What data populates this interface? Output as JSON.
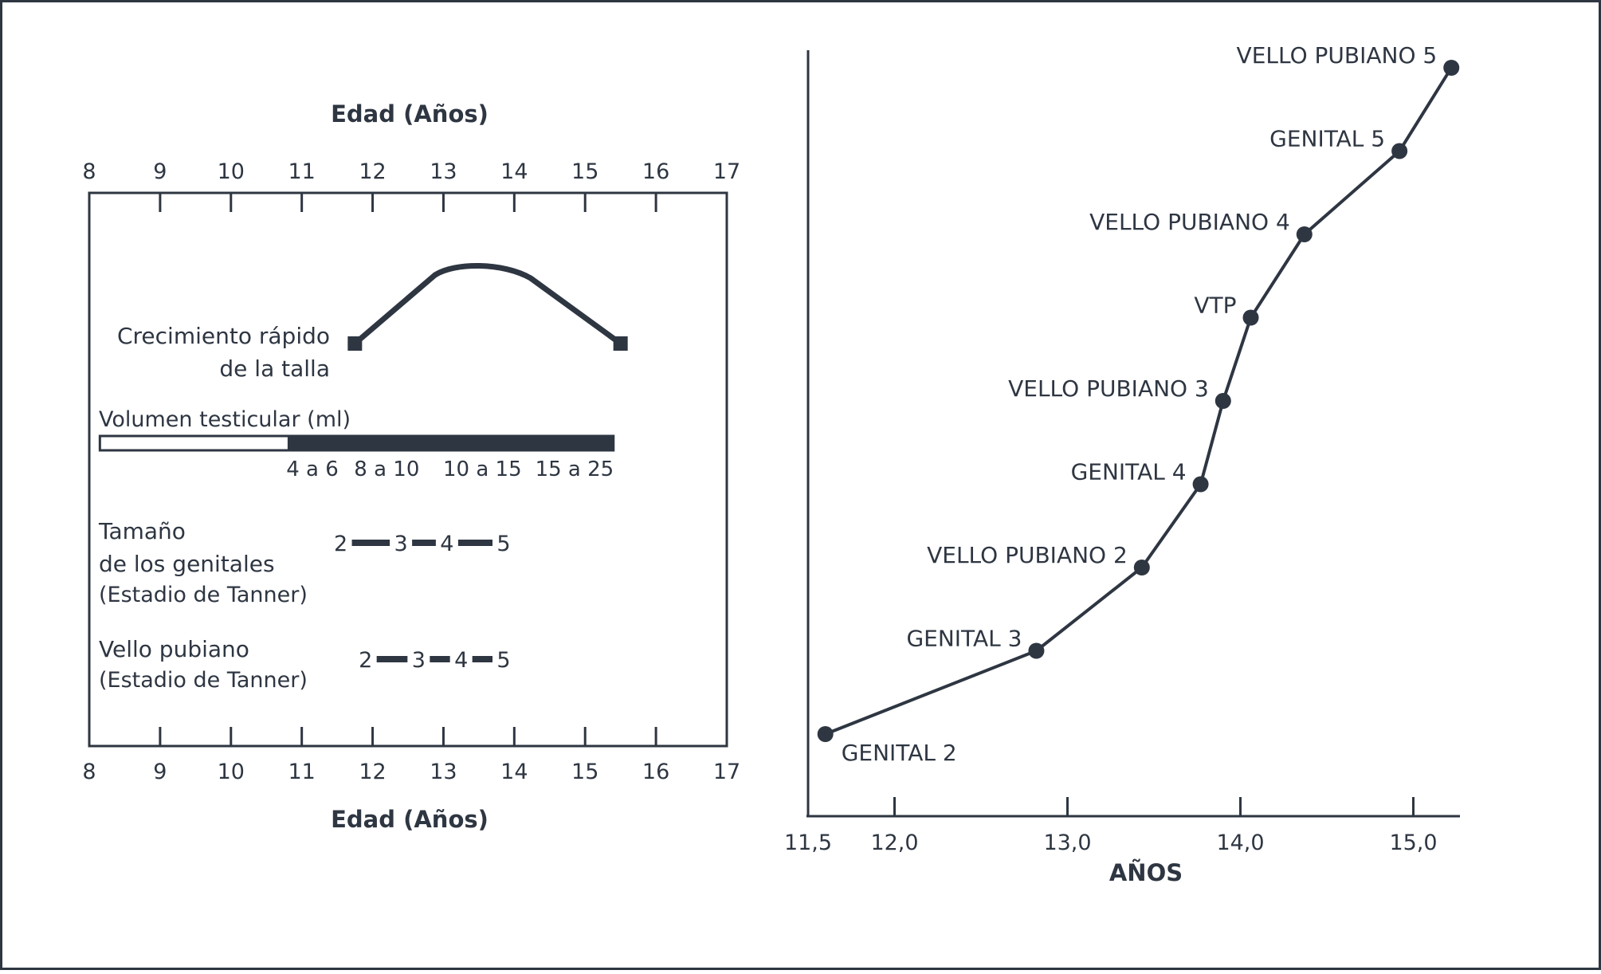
{
  "colors": {
    "ink": "#2e3642",
    "background": "#ffffff"
  },
  "chart_data": [
    {
      "type": "timeline",
      "title": "",
      "xlabel_top": "Edad (Años)",
      "xlabel_bottom": "Edad (Años)",
      "xlim": [
        8,
        17
      ],
      "ticks": [
        8,
        9,
        10,
        11,
        12,
        13,
        14,
        15,
        16,
        17
      ],
      "tick_labels": [
        "8",
        "9",
        "10",
        "11",
        "12",
        "13",
        "14",
        "15",
        "16",
        "17"
      ],
      "growth": {
        "label_line1": "Crecimiento rápido",
        "label_line2": "de la talla",
        "start": 11.75,
        "peak": 13.5,
        "end": 15.5
      },
      "testicular": {
        "label": "Volumen testicular (ml)",
        "bar_start": 8.15,
        "filled_start": 10.8,
        "bar_end": 15.4,
        "value_labels": [
          {
            "text": "4 a 6",
            "at": 11.15
          },
          {
            "text": "8 a 10",
            "at": 12.2
          },
          {
            "text": "10 a 15",
            "at": 13.55
          },
          {
            "text": "15 a 25",
            "at": 14.85
          }
        ]
      },
      "genitales": {
        "label_lines": [
          "Tamaño",
          "de los genitales",
          "(Estadio de Tanner)"
        ],
        "stages": [
          {
            "label": "2",
            "at": 11.55
          },
          {
            "label": "3",
            "at": 12.4
          },
          {
            "label": "4",
            "at": 13.05
          },
          {
            "label": "5",
            "at": 13.85
          }
        ]
      },
      "vello": {
        "label_lines": [
          "Vello pubiano",
          "(Estadio de Tanner)"
        ],
        "stages": [
          {
            "label": "2",
            "at": 11.9
          },
          {
            "label": "3",
            "at": 12.65
          },
          {
            "label": "4",
            "at": 13.25
          },
          {
            "label": "5",
            "at": 13.85
          }
        ]
      }
    },
    {
      "type": "line",
      "title": "",
      "xlabel": "AÑOS",
      "ylabel": "",
      "xlim": [
        11.5,
        15.3
      ],
      "x_ticks": [
        11.5,
        12.0,
        13.0,
        14.0,
        15.0
      ],
      "x_tick_labels": [
        "11,5",
        "12,0",
        "13,0",
        "14,0",
        "15,0"
      ],
      "series": [
        {
          "points": [
            {
              "label": "GENITAL 2",
              "x": 11.6
            },
            {
              "label": "GENITAL 3",
              "x": 12.82
            },
            {
              "label": "VELLO PUBIANO 2",
              "x": 13.43
            },
            {
              "label": "GENITAL 4",
              "x": 13.77
            },
            {
              "label": "VELLO PUBIANO 3",
              "x": 13.9
            },
            {
              "label": "VTP",
              "x": 14.06
            },
            {
              "label": "VELLO PUBIANO 4",
              "x": 14.37
            },
            {
              "label": "GENITAL 5",
              "x": 14.92
            },
            {
              "label": "VELLO PUBIANO 5",
              "x": 15.22
            }
          ]
        }
      ]
    }
  ]
}
